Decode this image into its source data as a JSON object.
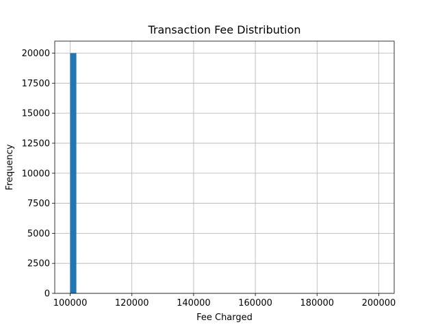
{
  "chart_data": {
    "type": "bar",
    "title": "Transaction Fee Distribution",
    "xlabel": "Fee Charged",
    "ylabel": "Frequency",
    "xlim": [
      95000,
      205000
    ],
    "ylim": [
      0,
      21000
    ],
    "xticks": [
      100000,
      120000,
      140000,
      160000,
      180000,
      200000
    ],
    "yticks": [
      0,
      2500,
      5000,
      7500,
      10000,
      12500,
      15000,
      17500,
      20000
    ],
    "grid": true,
    "bin_width": 2000,
    "bins": [
      {
        "start": 100000,
        "end": 102000,
        "count": 20000
      }
    ],
    "colors": {
      "bar": "#1f77b4",
      "grid": "#b0b0b0",
      "axis": "#000000"
    }
  }
}
